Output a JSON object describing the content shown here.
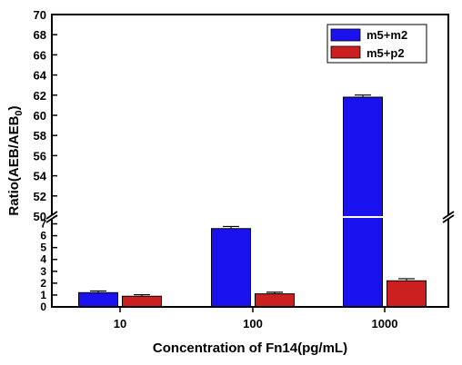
{
  "chart_data": {
    "type": "bar",
    "title": "",
    "xlabel": "Concentration of Fn14(pg/mL)",
    "ylabel_main": "Ratio(AEB/AEB",
    "ylabel_sub": "0",
    "ylabel_close": ")",
    "categories": [
      "10",
      "100",
      "1000"
    ],
    "series": [
      {
        "name": "m5+m2",
        "color": "#1a12ee",
        "values": [
          1.2,
          6.6,
          61.8
        ],
        "errors": [
          0.06,
          0.1,
          0.12
        ]
      },
      {
        "name": "m5+p2",
        "color": "#cc1f1f",
        "values": [
          0.9,
          1.1,
          2.2
        ],
        "errors": [
          0.05,
          0.06,
          0.1
        ]
      }
    ],
    "y_axis_break": {
      "lower_range": [
        0,
        7.5
      ],
      "upper_range": [
        50,
        70
      ]
    },
    "y_ticks_lower": [
      "0",
      "1",
      "2",
      "3",
      "4",
      "5",
      "6",
      "7"
    ],
    "y_ticks_upper": [
      "50",
      "52",
      "54",
      "56",
      "58",
      "60",
      "62",
      "64",
      "66",
      "68",
      "70"
    ],
    "legend_position": "top-right",
    "grid": false
  }
}
